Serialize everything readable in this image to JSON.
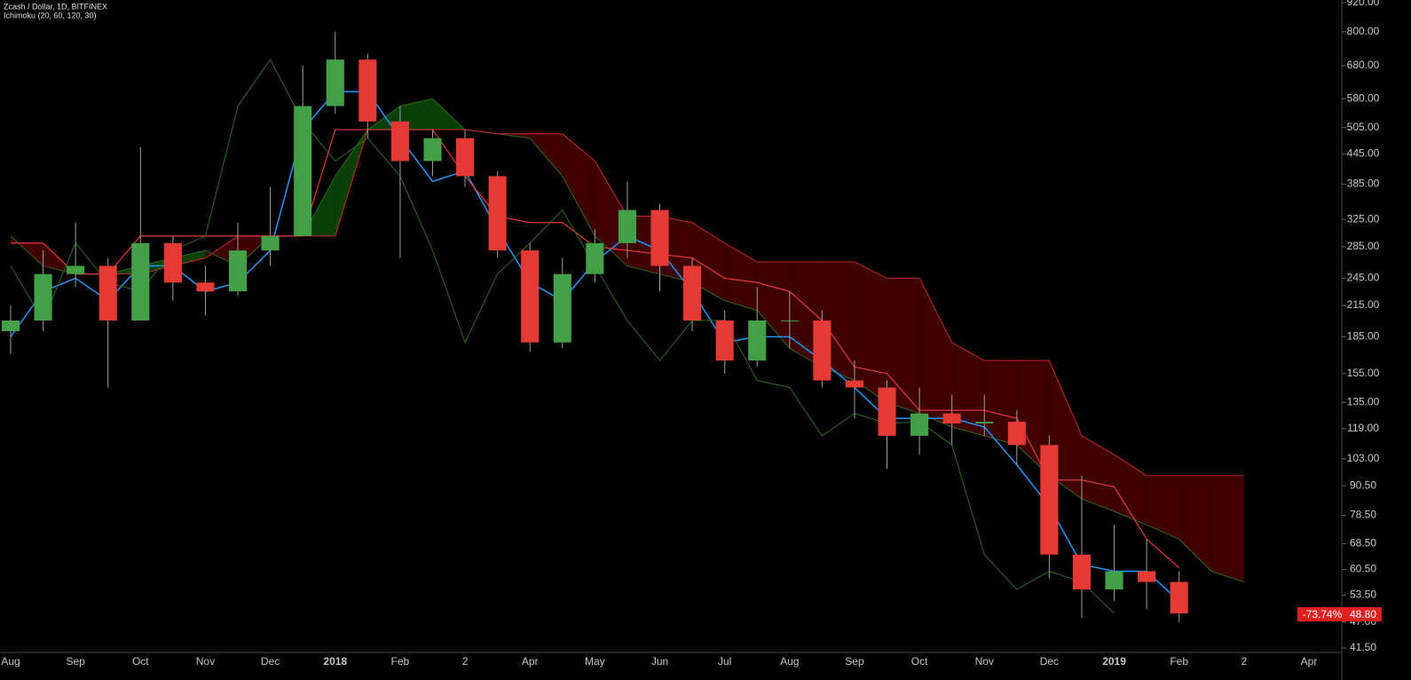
{
  "chart_data": {
    "type": "candlestick",
    "title": "Zcash / Dollar, 1D, BITFINEX",
    "subtitle": "Ichimoku (20, 60, 120, 30)",
    "x_labels": [
      "Aug",
      "Sep",
      "Oct",
      "Nov",
      "Dec",
      "2018",
      "Feb",
      "2",
      "Apr",
      "May",
      "Jun",
      "Jul",
      "Aug",
      "Sep",
      "Oct",
      "Nov",
      "Dec",
      "2019",
      "Feb",
      "2",
      "Apr"
    ],
    "candles": {
      "up_color": "#43a047",
      "down_color": "#e53935",
      "wick_color": "#9e9e9e",
      "open": [
        190,
        200,
        250,
        260,
        200,
        290,
        240,
        230,
        280,
        300,
        560,
        700,
        520,
        430,
        480,
        400,
        280,
        180,
        250,
        290,
        340,
        260,
        200,
        165,
        200,
        200,
        150,
        145,
        115,
        128,
        122,
        123,
        110,
        65,
        55,
        60,
        57
      ],
      "high": [
        215,
        280,
        320,
        270,
        460,
        300,
        260,
        320,
        380,
        680,
        800,
        720,
        560,
        500,
        500,
        410,
        290,
        270,
        310,
        390,
        350,
        270,
        210,
        235,
        230,
        210,
        165,
        150,
        145,
        140,
        140,
        130,
        115,
        95,
        75,
        70,
        60
      ],
      "low": [
        170,
        190,
        235,
        145,
        200,
        220,
        205,
        225,
        260,
        300,
        540,
        480,
        270,
        400,
        380,
        270,
        172,
        175,
        240,
        270,
        230,
        190,
        155,
        160,
        175,
        145,
        125,
        98,
        105,
        110,
        115,
        100,
        58,
        48,
        52,
        50,
        47
      ],
      "close": [
        200,
        250,
        260,
        200,
        290,
        240,
        230,
        280,
        300,
        560,
        700,
        520,
        430,
        480,
        400,
        280,
        180,
        250,
        290,
        340,
        260,
        200,
        165,
        200,
        200,
        150,
        145,
        115,
        128,
        122,
        123,
        110,
        65,
        55,
        60,
        57,
        49
      ]
    },
    "lines": [
      {
        "color": "#2196f3",
        "width": 1.5,
        "values": [
          185,
          230,
          245,
          220,
          260,
          260,
          230,
          240,
          280,
          500,
          600,
          600,
          480,
          390,
          410,
          310,
          240,
          220,
          265,
          300,
          280,
          230,
          180,
          185,
          185,
          165,
          145,
          125,
          125,
          125,
          120,
          100,
          82,
          62,
          60,
          60,
          52
        ]
      },
      {
        "color": "#e53935",
        "width": 1.2,
        "values": [
          290,
          290,
          250,
          250,
          300,
          300,
          300,
          300,
          300,
          300,
          500,
          500,
          500,
          500,
          400,
          330,
          320,
          320,
          285,
          280,
          275,
          270,
          245,
          240,
          230,
          200,
          160,
          155,
          130,
          130,
          130,
          125,
          93,
          93,
          90,
          70,
          61
        ]
      },
      {
        "color": "#2e6b1a",
        "width": 1,
        "values": [
          260,
          200,
          290,
          240,
          230,
          280,
          300,
          560,
          700,
          520,
          430,
          480,
          400,
          280,
          180,
          250,
          290,
          340,
          260,
          200,
          165,
          200,
          200,
          150,
          145,
          115,
          128,
          122,
          123,
          110,
          65,
          55,
          60,
          57,
          49
        ]
      }
    ],
    "cloud": {
      "span_a": {
        "color": "#2e6b1a",
        "values": [
          300,
          260,
          250,
          250,
          260,
          270,
          280,
          260,
          300,
          300,
          400,
          500,
          560,
          580,
          500,
          490,
          480,
          400,
          300,
          260,
          250,
          240,
          220,
          210,
          175,
          160,
          150,
          135,
          128,
          120,
          115,
          110,
          95,
          85,
          80,
          75,
          70,
          60,
          57
        ]
      },
      "span_b": {
        "color": "#c62828",
        "values": [
          290,
          290,
          250,
          250,
          250,
          260,
          270,
          300,
          300,
          300,
          300,
          500,
          500,
          500,
          500,
          490,
          490,
          490,
          430,
          330,
          330,
          320,
          290,
          265,
          265,
          265,
          265,
          245,
          245,
          180,
          165,
          165,
          165,
          115,
          105,
          95,
          95,
          95,
          95
        ]
      },
      "up_fill": "#0b4a0b",
      "down_fill": "#4a0000"
    },
    "log_scale": true,
    "ylim": [
      41.5,
      920
    ],
    "yticks": [
      {
        "value": 920,
        "label": "920.00"
      },
      {
        "value": 800,
        "label": "800.00"
      },
      {
        "value": 680,
        "label": "680.00"
      },
      {
        "value": 580,
        "label": "580.00"
      },
      {
        "value": 505,
        "label": "505.00"
      },
      {
        "value": 445,
        "label": "445.00"
      },
      {
        "value": 385,
        "label": "385.00"
      },
      {
        "value": 325,
        "label": "325.00"
      },
      {
        "value": 285,
        "label": "285.00"
      },
      {
        "value": 245,
        "label": "245.00"
      },
      {
        "value": 215,
        "label": "215.00"
      },
      {
        "value": 185,
        "label": "185.00"
      },
      {
        "value": 155,
        "label": "155.00"
      },
      {
        "value": 135,
        "label": "135.00"
      },
      {
        "value": 119,
        "label": "119.00"
      },
      {
        "value": 103,
        "label": "103.00"
      },
      {
        "value": 90.5,
        "label": "90.50"
      },
      {
        "value": 78.5,
        "label": "78.50"
      },
      {
        "value": 68.5,
        "label": "68.50"
      },
      {
        "value": 60.5,
        "label": "60.50"
      },
      {
        "value": 53.5,
        "label": "53.50"
      },
      {
        "value": 47,
        "label": "47.00"
      },
      {
        "value": 41.5,
        "label": "41.50"
      }
    ],
    "last_price": {
      "change": "-73.74%",
      "price": {
        "value": 48.8,
        "label": "48.80"
      },
      "color": "#e02020"
    }
  }
}
